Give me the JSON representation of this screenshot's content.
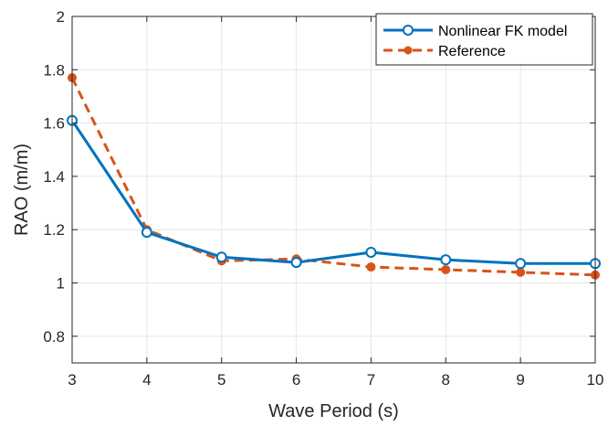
{
  "chart_data": {
    "type": "line",
    "xlabel": "Wave Period (s)",
    "ylabel": "RAO (m/m)",
    "xlim": [
      3,
      10
    ],
    "ylim": [
      0.7,
      2.0
    ],
    "xticks": [
      3,
      4,
      5,
      6,
      7,
      8,
      9,
      10
    ],
    "yticks": [
      0.8,
      1.0,
      1.2,
      1.4,
      1.6,
      1.8,
      2.0
    ],
    "xtick_labels": [
      "3",
      "4",
      "5",
      "6",
      "7",
      "8",
      "9",
      "10"
    ],
    "ytick_labels": [
      "0.8",
      "1",
      "1.2",
      "1.4",
      "1.6",
      "1.8",
      "2"
    ],
    "grid": true,
    "legend_position": "top-right",
    "series": [
      {
        "name": "Nonlinear FK model",
        "x": [
          3,
          4,
          5,
          6,
          7,
          8,
          9,
          10
        ],
        "values": [
          1.61,
          1.19,
          1.097,
          1.077,
          1.115,
          1.087,
          1.073,
          1.073
        ],
        "color": "#0072BD",
        "line_style": "solid",
        "marker": "open-circle"
      },
      {
        "name": "Reference",
        "x": [
          3,
          4,
          5,
          6,
          7,
          8,
          9,
          10
        ],
        "values": [
          1.77,
          1.2,
          1.083,
          1.09,
          1.06,
          1.05,
          1.04,
          1.03
        ],
        "color": "#D95319",
        "line_style": "dashed",
        "marker": "filled-circle"
      }
    ]
  }
}
